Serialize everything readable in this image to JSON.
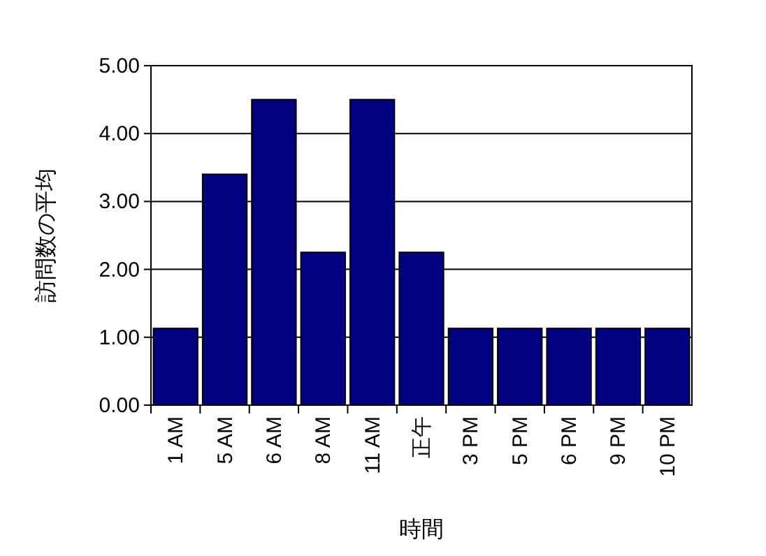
{
  "chart_data": {
    "type": "bar",
    "xlabel": "時間",
    "ylabel": "訪問数の平均",
    "categories": [
      "1 AM",
      "5 AM",
      "6 AM",
      "8 AM",
      "11 AM",
      "正午",
      "3 PM",
      "5 PM",
      "6 PM",
      "9 PM",
      "10 PM"
    ],
    "values": [
      1.13,
      3.4,
      4.5,
      2.25,
      4.5,
      2.25,
      1.13,
      1.13,
      1.13,
      1.13,
      1.13
    ],
    "color": "#000080",
    "ylim": [
      0,
      5
    ],
    "yticks": [
      {
        "value": 0,
        "label": "0.00"
      },
      {
        "value": 1,
        "label": "1.00"
      },
      {
        "value": 2,
        "label": "2.00"
      },
      {
        "value": 3,
        "label": "3.00"
      },
      {
        "value": 4,
        "label": "4.00"
      },
      {
        "value": 5,
        "label": "5.00"
      }
    ],
    "grid": "y"
  }
}
